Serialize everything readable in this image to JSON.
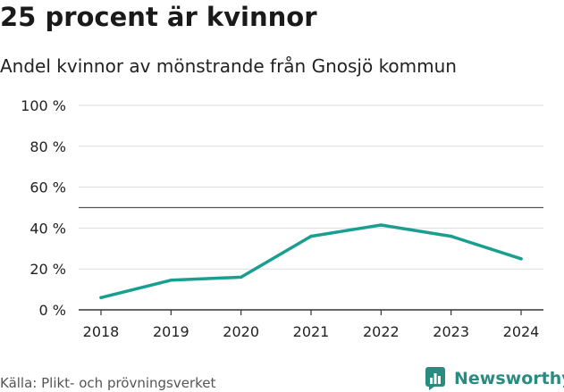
{
  "header": {
    "title": "25 procent är kvinnor",
    "subtitle": "Andel kvinnor av mönstrande från Gnosjö kommun"
  },
  "footer": {
    "source": "Källa: Plikt- och prövningsverket",
    "logo_text": "Newsworthy"
  },
  "colors": {
    "line": "#1a9e90",
    "grid": "#dddddd",
    "reference": "#555555",
    "logo": "#2a8c80"
  },
  "chart_data": {
    "type": "line",
    "title": "25 procent är kvinnor",
    "subtitle": "Andel kvinnor av mönstrande från Gnosjö kommun",
    "x": [
      "2018",
      "2019",
      "2020",
      "2021",
      "2022",
      "2023",
      "2024"
    ],
    "series": [
      {
        "values": [
          6,
          14.5,
          16,
          36,
          41.5,
          36,
          25
        ]
      }
    ],
    "y_ticks": [
      {
        "value": 0,
        "label": "0 %"
      },
      {
        "value": 20,
        "label": "20 %"
      },
      {
        "value": 40,
        "label": "40 %"
      },
      {
        "value": 60,
        "label": "60 %"
      },
      {
        "value": 80,
        "label": "80 %"
      },
      {
        "value": 100,
        "label": "100 %"
      }
    ],
    "ylim": [
      0,
      100
    ],
    "reference_line": 50,
    "grid": true,
    "legend": "none"
  }
}
